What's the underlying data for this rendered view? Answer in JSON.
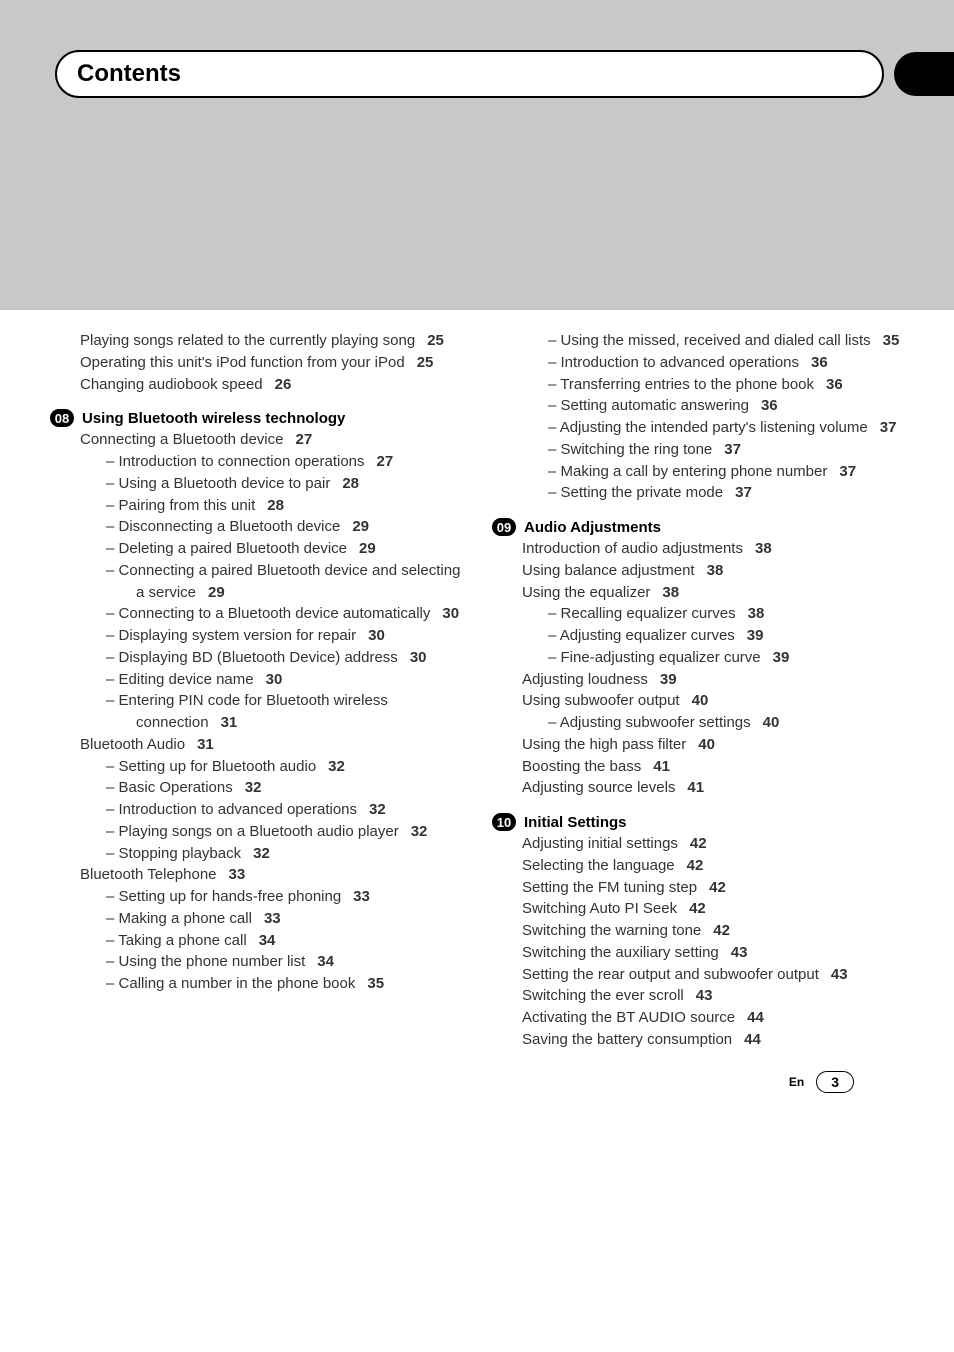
{
  "header": {
    "title": "Contents"
  },
  "footer": {
    "lang": "En",
    "page": "3"
  },
  "left_prelude": [
    {
      "type": "main",
      "text": "Playing songs related to the currently playing song",
      "page": "25"
    },
    {
      "type": "main",
      "text": "Operating this unit's iPod function from your iPod",
      "page": "25"
    },
    {
      "type": "main",
      "text": "Changing audiobook speed",
      "page": "26"
    }
  ],
  "section08": {
    "num": "08",
    "title": "Using Bluetooth wireless technology",
    "entries": [
      {
        "type": "main",
        "text": "Connecting a Bluetooth device",
        "page": "27"
      },
      {
        "type": "sub",
        "text": "Introduction to connection operations",
        "page": "27"
      },
      {
        "type": "sub",
        "text": "Using a Bluetooth device to pair",
        "page": "28"
      },
      {
        "type": "sub",
        "text": "Pairing from this unit",
        "page": "28"
      },
      {
        "type": "sub",
        "text": "Disconnecting a Bluetooth device",
        "page": "29"
      },
      {
        "type": "sub",
        "text": "Deleting a paired Bluetooth device",
        "page": "29"
      },
      {
        "type": "sub",
        "text": "Connecting a paired Bluetooth device and selecting a service",
        "page": "29"
      },
      {
        "type": "sub",
        "text": "Connecting to a Bluetooth device automatically",
        "page": "30"
      },
      {
        "type": "sub",
        "text": "Displaying system version for repair",
        "page": "30"
      },
      {
        "type": "sub",
        "text": "Displaying BD (Bluetooth Device) address",
        "page": "30"
      },
      {
        "type": "sub",
        "text": "Editing device name",
        "page": "30"
      },
      {
        "type": "sub",
        "text": "Entering PIN code for Bluetooth wireless connection",
        "page": "31"
      },
      {
        "type": "main",
        "text": "Bluetooth Audio",
        "page": "31"
      },
      {
        "type": "sub",
        "text": "Setting up for Bluetooth audio",
        "page": "32"
      },
      {
        "type": "sub",
        "text": "Basic Operations",
        "page": "32"
      },
      {
        "type": "sub",
        "text": "Introduction to advanced operations",
        "page": "32"
      },
      {
        "type": "sub",
        "text": "Playing songs on a Bluetooth audio player",
        "page": "32"
      },
      {
        "type": "sub",
        "text": "Stopping playback",
        "page": "32"
      },
      {
        "type": "main",
        "text": "Bluetooth Telephone",
        "page": "33"
      },
      {
        "type": "sub",
        "text": "Setting up for hands-free phoning",
        "page": "33"
      },
      {
        "type": "sub",
        "text": "Making a phone call",
        "page": "33"
      },
      {
        "type": "sub",
        "text": "Taking a phone call",
        "page": "34"
      },
      {
        "type": "sub",
        "text": "Using the phone number list",
        "page": "34"
      },
      {
        "type": "sub",
        "text": "Calling a number in the phone book",
        "page": "35"
      }
    ]
  },
  "right_prelude": [
    {
      "type": "sub",
      "text": "Using the missed, received and dialed call lists",
      "page": "35"
    },
    {
      "type": "sub",
      "text": "Introduction to advanced operations",
      "page": "36"
    },
    {
      "type": "sub",
      "text": "Transferring entries to the phone book",
      "page": "36"
    },
    {
      "type": "sub",
      "text": "Setting automatic answering",
      "page": "36"
    },
    {
      "type": "sub",
      "text": "Adjusting the intended party's listening volume",
      "page": "37"
    },
    {
      "type": "sub",
      "text": "Switching the ring tone",
      "page": "37"
    },
    {
      "type": "sub",
      "text": "Making a call by entering phone number",
      "page": "37"
    },
    {
      "type": "sub",
      "text": "Setting the private mode",
      "page": "37"
    }
  ],
  "section09": {
    "num": "09",
    "title": "Audio Adjustments",
    "entries": [
      {
        "type": "main",
        "text": "Introduction of audio adjustments",
        "page": "38"
      },
      {
        "type": "main",
        "text": "Using balance adjustment",
        "page": "38"
      },
      {
        "type": "main",
        "text": "Using the equalizer",
        "page": "38"
      },
      {
        "type": "sub",
        "text": "Recalling equalizer curves",
        "page": "38"
      },
      {
        "type": "sub",
        "text": "Adjusting equalizer curves",
        "page": "39"
      },
      {
        "type": "sub",
        "text": "Fine-adjusting equalizer curve",
        "page": "39"
      },
      {
        "type": "main",
        "text": "Adjusting loudness",
        "page": "39"
      },
      {
        "type": "main",
        "text": "Using subwoofer output",
        "page": "40"
      },
      {
        "type": "sub",
        "text": "Adjusting subwoofer settings",
        "page": "40"
      },
      {
        "type": "main",
        "text": "Using the high pass filter",
        "page": "40"
      },
      {
        "type": "main",
        "text": "Boosting the bass",
        "page": "41"
      },
      {
        "type": "main",
        "text": "Adjusting source levels",
        "page": "41"
      }
    ]
  },
  "section10": {
    "num": "10",
    "title": "Initial Settings",
    "entries": [
      {
        "type": "main",
        "text": "Adjusting initial settings",
        "page": "42"
      },
      {
        "type": "main",
        "text": "Selecting the language",
        "page": "42"
      },
      {
        "type": "main",
        "text": "Setting the FM tuning step",
        "page": "42"
      },
      {
        "type": "main",
        "text": "Switching Auto PI Seek",
        "page": "42"
      },
      {
        "type": "main",
        "text": "Switching the warning tone",
        "page": "42"
      },
      {
        "type": "main",
        "text": "Switching the auxiliary setting",
        "page": "43"
      },
      {
        "type": "main",
        "text": "Setting the rear output and subwoofer output",
        "page": "43"
      },
      {
        "type": "main",
        "text": "Switching the ever scroll",
        "page": "43"
      },
      {
        "type": "main",
        "text": "Activating the BT AUDIO source",
        "page": "44"
      },
      {
        "type": "main",
        "text": "Saving the battery consumption",
        "page": "44"
      }
    ]
  }
}
